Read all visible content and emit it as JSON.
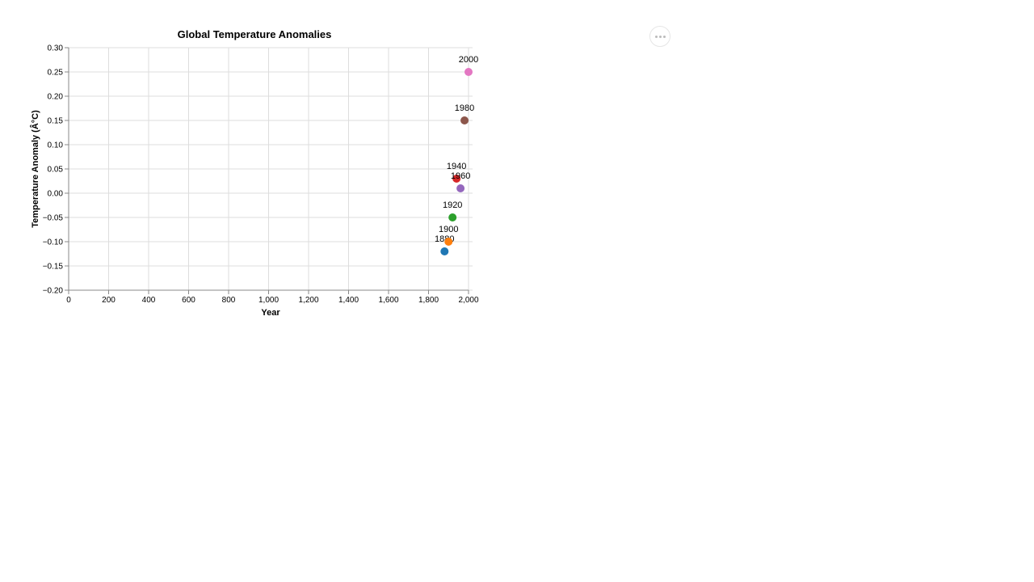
{
  "chart_data": {
    "type": "scatter",
    "title": "Global Temperature Anomalies",
    "xlabel": "Year",
    "ylabel": "Temperature Anomaly (Â°C)",
    "xlim": [
      0,
      2000
    ],
    "ylim": [
      -0.2,
      0.3
    ],
    "x_ticks": [
      0,
      200,
      400,
      600,
      800,
      1000,
      1200,
      1400,
      1600,
      1800,
      2000
    ],
    "x_tick_labels": [
      "0",
      "200",
      "400",
      "600",
      "800",
      "1,000",
      "1,200",
      "1,400",
      "1,600",
      "1,800",
      "2,000"
    ],
    "y_ticks": [
      0.3,
      0.25,
      0.2,
      0.15,
      0.1,
      0.05,
      0,
      -0.05,
      -0.1,
      -0.15,
      -0.2
    ],
    "y_tick_labels": [
      "0.30",
      "0.25",
      "0.20",
      "0.15",
      "0.10",
      "0.05",
      "0.00",
      "−0.05",
      "−0.10",
      "−0.15",
      "−0.20"
    ],
    "grid": true,
    "points": [
      {
        "x": 1880,
        "y": -0.12,
        "label": "1880",
        "color": "#1f77b4"
      },
      {
        "x": 1900,
        "y": -0.1,
        "label": "1900",
        "color": "#ff7f0e"
      },
      {
        "x": 1920,
        "y": -0.05,
        "label": "1920",
        "color": "#2ca02c"
      },
      {
        "x": 1940,
        "y": 0.03,
        "label": "1940",
        "color": "#d62728"
      },
      {
        "x": 1960,
        "y": 0.01,
        "label": "1960",
        "color": "#9467bd"
      },
      {
        "x": 1980,
        "y": 0.15,
        "label": "1980",
        "color": "#8c564b"
      },
      {
        "x": 2000,
        "y": 0.25,
        "label": "2000",
        "color": "#e377c2"
      }
    ]
  },
  "menu": {
    "icon": "more-horizontal-icon"
  }
}
